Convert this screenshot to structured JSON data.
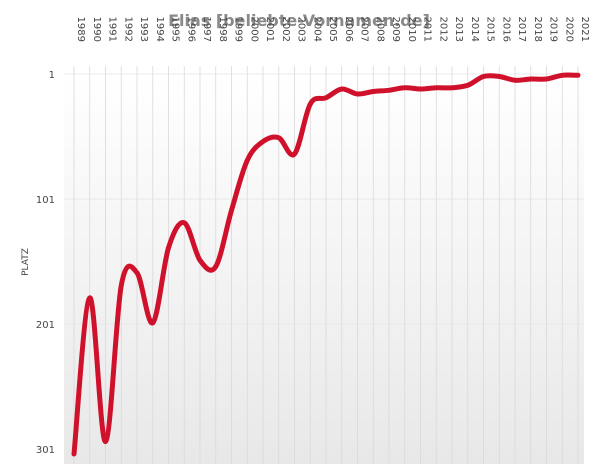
{
  "chart_data": {
    "type": "line",
    "title": "Elias [beliebte-Vornamen.de]",
    "ylabel": "PLATZ",
    "xlabel": "",
    "y_inverted": true,
    "ylim": [
      1,
      301
    ],
    "yticks": [
      "1",
      "101",
      "201",
      "301"
    ],
    "grid": "vertical",
    "legend": "none",
    "line_color": "#d0112b",
    "x": [
      "1989",
      "1990",
      "1991",
      "1992",
      "1993",
      "1994",
      "1995",
      "1996",
      "1997",
      "1998",
      "1999",
      "2000",
      "2001",
      "2002",
      "2003",
      "2004",
      "2005",
      "2006",
      "2007",
      "2008",
      "2009",
      "2010",
      "2011",
      "2012",
      "2013",
      "2014",
      "2015",
      "2016",
      "2017",
      "2018",
      "2019",
      "2020",
      "2021"
    ],
    "values": [
      305,
      180,
      295,
      170,
      160,
      200,
      140,
      120,
      150,
      155,
      110,
      70,
      55,
      52,
      65,
      25,
      20,
      13,
      17,
      15,
      14,
      12,
      13,
      12,
      12,
      10,
      3,
      3,
      6,
      5,
      5,
      2,
      2
    ]
  }
}
